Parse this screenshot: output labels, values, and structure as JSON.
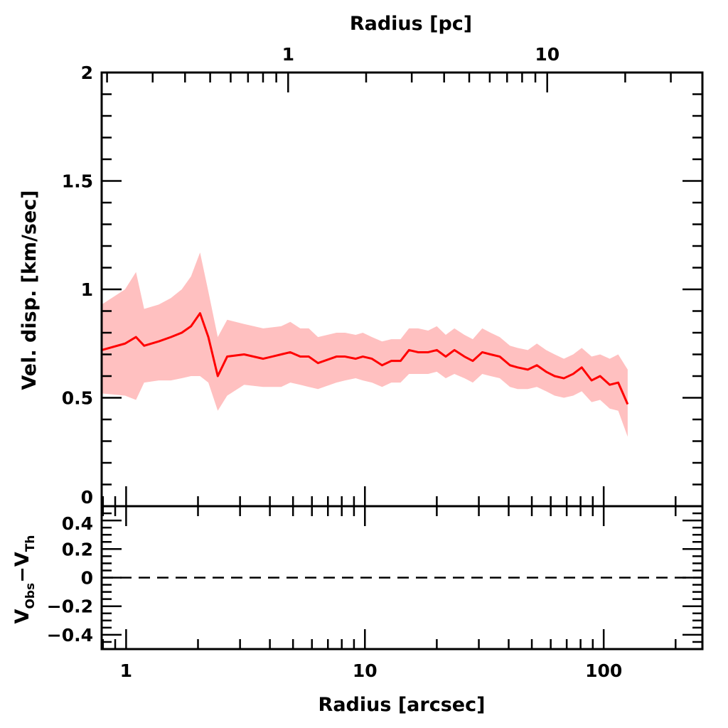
{
  "chart_data": {
    "type": "line",
    "title": "",
    "colors": {
      "line": "#ff0000",
      "band": "#ffc0c0",
      "axes": "#000000"
    },
    "panels": {
      "main": {
        "ylabel": "Vel. disp. [km/sec]",
        "ylim": [
          0,
          2
        ],
        "yticks": [
          0,
          0.5,
          1,
          1.5,
          2
        ],
        "ytick_labels": [
          "0",
          "0.5",
          "1",
          "1.5",
          "2"
        ],
        "yminor_step": 0.1
      },
      "residual": {
        "ylabel_main": "V",
        "ylabel_sub1": "Obs",
        "ylabel_minus": "−V",
        "ylabel_sub2": "Th",
        "ylim": [
          -0.5,
          0.5
        ],
        "yticks": [
          0.4,
          0.2,
          0,
          -0.2,
          -0.4
        ],
        "ytick_labels": [
          "0.4",
          "0.2",
          "0",
          "−0.2",
          "−0.4"
        ],
        "yminor_step": 0.05,
        "reference_line": 0
      }
    },
    "xaxis_bottom": {
      "label": "Radius [arcsec]",
      "scale": "log",
      "xlim": [
        0.79,
        259
      ],
      "ticks": [
        1,
        10,
        100
      ],
      "tick_labels": [
        "1",
        "10",
        "100"
      ]
    },
    "xaxis_top": {
      "label": "Radius [pc]",
      "scale": "log",
      "ticks": [
        1,
        10
      ],
      "tick_labels": [
        "1",
        "10"
      ],
      "arcsec_at_1pc": 4.77,
      "arcsec_at_10pc": 58.0
    },
    "series": [
      {
        "name": "velocity dispersion",
        "x": [
          0.79,
          0.99,
          1.1,
          1.19,
          1.37,
          1.54,
          1.71,
          1.87,
          2.04,
          2.21,
          2.42,
          2.65,
          3.12,
          3.75,
          4.46,
          4.87,
          5.36,
          5.82,
          6.36,
          7.6,
          8.26,
          9.15,
          9.8,
          10.7,
          11.8,
          12.9,
          14.1,
          15.3,
          16.7,
          18.4,
          20.0,
          21.8,
          23.7,
          26.1,
          28.3,
          31.0,
          33.6,
          36.7,
          40.5,
          43.6,
          48.1,
          52.5,
          57.4,
          62.3,
          68.1,
          74.5,
          80.9,
          89.0,
          96.6,
          106,
          115,
          126
        ],
        "y": [
          0.72,
          0.75,
          0.78,
          0.74,
          0.76,
          0.78,
          0.8,
          0.83,
          0.89,
          0.78,
          0.6,
          0.69,
          0.7,
          0.68,
          0.7,
          0.71,
          0.69,
          0.69,
          0.66,
          0.69,
          0.69,
          0.68,
          0.69,
          0.68,
          0.65,
          0.67,
          0.67,
          0.72,
          0.71,
          0.71,
          0.72,
          0.69,
          0.72,
          0.69,
          0.67,
          0.71,
          0.7,
          0.69,
          0.65,
          0.64,
          0.63,
          0.65,
          0.62,
          0.6,
          0.59,
          0.61,
          0.64,
          0.58,
          0.6,
          0.56,
          0.57,
          0.47
        ],
        "upper": [
          0.93,
          1.0,
          1.08,
          0.91,
          0.93,
          0.96,
          1.0,
          1.06,
          1.17,
          0.99,
          0.78,
          0.86,
          0.84,
          0.82,
          0.83,
          0.85,
          0.82,
          0.82,
          0.78,
          0.8,
          0.8,
          0.79,
          0.8,
          0.78,
          0.76,
          0.77,
          0.77,
          0.82,
          0.82,
          0.81,
          0.83,
          0.79,
          0.82,
          0.79,
          0.77,
          0.82,
          0.8,
          0.78,
          0.74,
          0.73,
          0.72,
          0.75,
          0.72,
          0.7,
          0.68,
          0.7,
          0.73,
          0.69,
          0.7,
          0.68,
          0.7,
          0.63
        ],
        "lower": [
          0.52,
          0.51,
          0.49,
          0.57,
          0.58,
          0.58,
          0.59,
          0.6,
          0.6,
          0.57,
          0.44,
          0.51,
          0.56,
          0.55,
          0.55,
          0.57,
          0.56,
          0.55,
          0.54,
          0.57,
          0.58,
          0.59,
          0.58,
          0.57,
          0.55,
          0.57,
          0.57,
          0.61,
          0.61,
          0.61,
          0.62,
          0.59,
          0.61,
          0.59,
          0.57,
          0.61,
          0.6,
          0.59,
          0.55,
          0.54,
          0.54,
          0.55,
          0.53,
          0.51,
          0.5,
          0.51,
          0.53,
          0.48,
          0.49,
          0.45,
          0.44,
          0.32
        ]
      }
    ]
  }
}
